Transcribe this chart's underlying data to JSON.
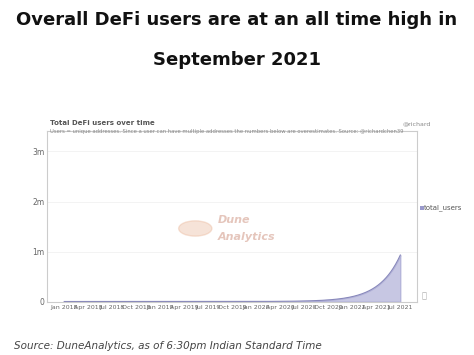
{
  "title_line1": "Overall DeFi users are at an all time high in",
  "title_line2": "September 2021",
  "subtitle": "Total DeFi users over time",
  "subtitle2": "Users = unique addresses. Since a user can have multiple addresses the numbers below are overestimates. Source: @richardchen39",
  "source_text": "Source: DuneAnalytics, as of 6:30pm Indian Standard Time",
  "chart_border_color": "#cccccc",
  "fill_color": "#9999cc",
  "fill_alpha": 0.55,
  "line_color": "#8888bb",
  "bg_color": "#ffffff",
  "chart_bg": "#ffffff",
  "y_labels": [
    "0",
    "1m",
    "2m",
    "3m"
  ],
  "y_values": [
    0,
    1000000,
    2000000,
    3000000
  ],
  "x_tick_labels": [
    "Jan 2018",
    "Apr 2018",
    "Jul 2018",
    "Oct 2018",
    "Jan 2019",
    "Apr 2019",
    "Jul 2019",
    "Oct 2019",
    "Jan 2020",
    "Apr 2020",
    "Jul 2020",
    "Oct 2020",
    "Jan 2021",
    "Apr 2021",
    "Jul 2021"
  ],
  "legend_label": "total_users",
  "watermark_text1": "Dune",
  "watermark_text2": "Analytics",
  "watermark_color": "#d4a090",
  "ylim": [
    0,
    3400000
  ],
  "title_fontsize": 13,
  "source_fontsize": 7.5,
  "handle_text": "@richard",
  "n_months": 45
}
